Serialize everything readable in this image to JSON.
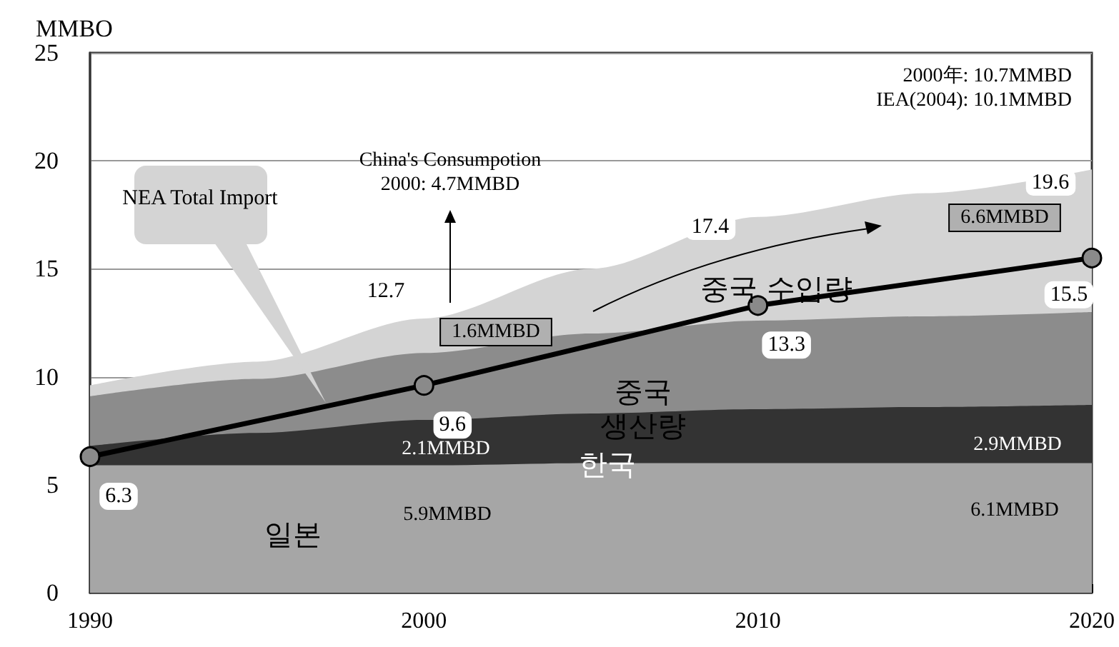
{
  "chart_data": {
    "type": "area",
    "stacked": true,
    "ylabel": "MMBO",
    "xlim": [
      1990,
      2020
    ],
    "xticks": [
      1990,
      2000,
      2010,
      2020
    ],
    "ylim": [
      0,
      25
    ],
    "yticks": [
      0,
      5,
      10,
      15,
      20,
      25
    ],
    "grid": "y",
    "x": [
      1990,
      1995,
      2000,
      2005,
      2010,
      2015,
      2020
    ],
    "series": [
      {
        "name": "일본",
        "color": "#a6a6a6",
        "values": [
          5.9,
          5.9,
          5.9,
          6.0,
          6.0,
          6.0,
          6.0
        ]
      },
      {
        "name": "한국",
        "color": "#333333",
        "values": [
          0.9,
          1.5,
          2.1,
          2.3,
          2.5,
          2.6,
          2.7
        ]
      },
      {
        "name": "중국 생산량",
        "color": "#8c8c8c",
        "values": [
          2.3,
          2.5,
          3.1,
          3.7,
          4.1,
          4.2,
          4.3
        ]
      },
      {
        "name": "중국 수입량",
        "color": "#d4d4d4",
        "values": [
          0.5,
          0.8,
          1.6,
          3.0,
          4.8,
          5.7,
          6.6
        ]
      },
      {
        "type": "line",
        "color": "#000000",
        "marker": "circle",
        "x": [
          1990,
          2000,
          2010,
          2020
        ],
        "values": [
          6.3,
          9.6,
          13.3,
          15.5
        ],
        "value_labels": [
          "6.3",
          "9.6",
          "13.3",
          "15.5"
        ]
      }
    ],
    "annotations": [
      "NEA Total Import",
      "China's Consumpotion\n2000: 4.7MMBD",
      "2000年: 10.7MMBD\nIEA(2004): 10.1MMBD",
      "1.6MMBD",
      "6.6MMBD",
      "2.1MMBD",
      "2.9MMBD",
      "5.9MMBD",
      "6.1MMBD",
      "12.7",
      "17.4",
      "19.6"
    ]
  }
}
